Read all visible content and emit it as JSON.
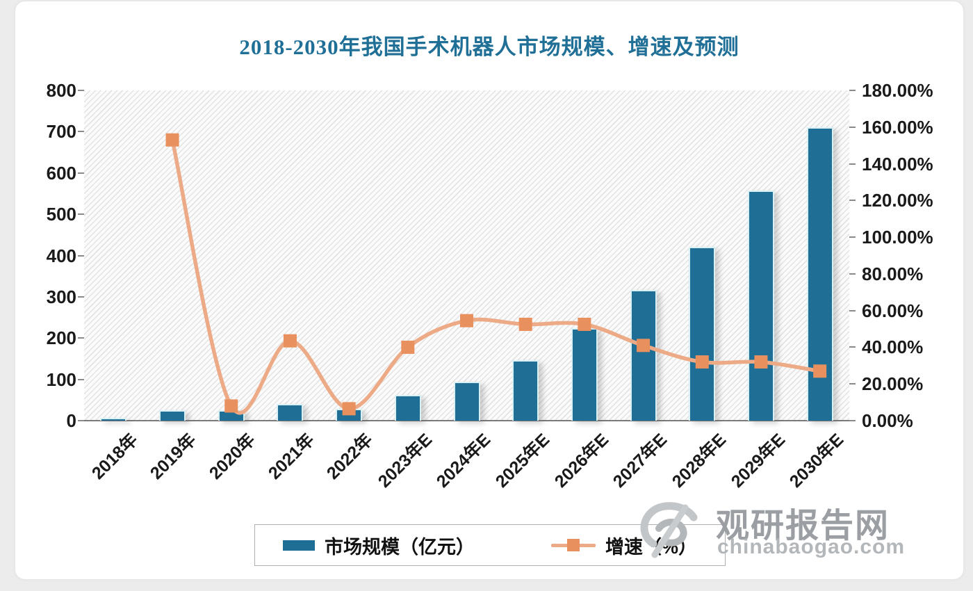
{
  "page": {
    "background_color": "#ececec",
    "card_background": "#ffffff"
  },
  "chart_data": {
    "type": "bar+line",
    "title": "2018-2030年我国手术机器人市场规模、增速及预测",
    "title_color": "#1f6f96",
    "categories": [
      "2018年",
      "2019年",
      "2020年",
      "2021年",
      "2022年",
      "2023年E",
      "2024年E",
      "2025年E",
      "2026年E",
      "2027年E",
      "2028年E",
      "2029年E",
      "2030年E"
    ],
    "series": [
      {
        "name": "市场规模（亿元）",
        "type": "bar",
        "axis": "left",
        "color": "#1e6e96",
        "values": [
          6,
          25,
          26,
          41,
          29,
          62,
          95,
          147,
          224,
          317,
          421,
          558,
          710
        ]
      },
      {
        "name": "增速（%）",
        "type": "line",
        "axis": "right",
        "line_color": "#edaa86",
        "marker_color": "#e9905f",
        "values": [
          null,
          153,
          8,
          43.5,
          6.5,
          40,
          54.5,
          52.5,
          52.5,
          41,
          32,
          32,
          27
        ]
      }
    ],
    "left_axis": {
      "min": 0,
      "max": 800,
      "step": 100,
      "ticks": [
        "800",
        "700",
        "600",
        "500",
        "400",
        "300",
        "200",
        "100",
        "0"
      ]
    },
    "right_axis": {
      "min": 0,
      "max": 180,
      "step": 20,
      "ticks": [
        "180.00%",
        "160.00%",
        "140.00%",
        "120.00%",
        "100.00%",
        "80.00%",
        "60.00%",
        "40.00%",
        "20.00%",
        "0.00%"
      ]
    },
    "grid": false,
    "plot_background": "diagonal-hatch",
    "legend_position": "bottom"
  },
  "legend": {
    "items": [
      {
        "label": "市场规模（亿元）",
        "swatch": "bar",
        "color": "#1e6e96"
      },
      {
        "label": "增速（%）",
        "swatch": "line-marker",
        "color": "#e9905f"
      }
    ]
  },
  "watermark": {
    "logo_icon": "guanyan-swirl-logo",
    "brand": "观研报告网",
    "domain": "chinabaogao.com"
  }
}
